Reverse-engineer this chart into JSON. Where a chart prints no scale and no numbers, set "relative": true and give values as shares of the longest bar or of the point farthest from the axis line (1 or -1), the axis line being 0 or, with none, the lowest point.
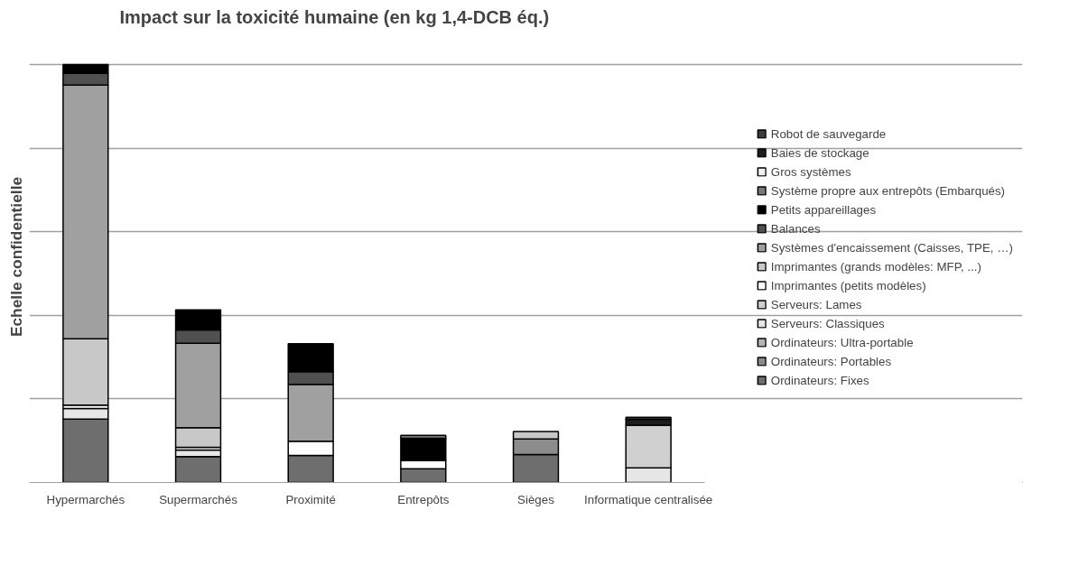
{
  "chart_data": {
    "type": "bar",
    "title": "Impact sur la toxicité humaine (en kg 1,4-DCB éq.)",
    "ylabel": "Echelle confidentielle",
    "categories": [
      "Hypermarchés",
      "Supermarchés",
      "Proximité",
      "Entrepôts",
      "Sièges",
      "Informatique centralisée"
    ],
    "stacked": true,
    "relative": true,
    "grid": "y",
    "legend": "right",
    "series": [
      {
        "name": "Ordinateurs: Fixes",
        "color": "#6e6e6e",
        "values": [
          0.152,
          0.062,
          0.065,
          0.033,
          0.067,
          null
        ]
      },
      {
        "name": "Ordinateurs: Portables",
        "color": "#8c8c8c",
        "values": [
          null,
          null,
          null,
          null,
          0.037,
          null
        ]
      },
      {
        "name": "Ordinateurs: Ultra-portable",
        "color": "#b4b4b4",
        "values": [
          null,
          null,
          null,
          null,
          null,
          null
        ]
      },
      {
        "name": "Serveurs: Classiques",
        "color": "#e6e6e6",
        "values": [
          0.025,
          0.016,
          null,
          null,
          null,
          0.035
        ]
      },
      {
        "name": "Serveurs: Lames",
        "color": "#d0d0d0",
        "values": [
          null,
          null,
          null,
          null,
          null,
          0.102
        ]
      },
      {
        "name": "Imprimantes (petits modèles)",
        "color": "#ffffff",
        "values": [
          0.008,
          0.006,
          0.034,
          0.02,
          null,
          null
        ]
      },
      {
        "name": "Imprimantes (grands modèles: MFP, ...)",
        "color": "#c8c8c8",
        "values": [
          0.159,
          0.047,
          null,
          null,
          0.018,
          null
        ]
      },
      {
        "name": "Systèmes d'encaissement (Caisses, TPE, …)",
        "color": "#a0a0a0",
        "values": [
          0.607,
          0.202,
          0.136,
          null,
          null,
          null
        ]
      },
      {
        "name": "Balances",
        "color": "#505050",
        "values": [
          0.028,
          0.032,
          0.03,
          null,
          null,
          null
        ]
      },
      {
        "name": "Petits appareillages",
        "color": "#000000",
        "values": [
          0.021,
          0.048,
          0.067,
          0.053,
          null,
          null
        ]
      },
      {
        "name": "Système propre aux entrepôts (Embarqués)",
        "color": "#787878",
        "values": [
          null,
          null,
          null,
          0.007,
          null,
          null
        ]
      },
      {
        "name": "Gros systèmes",
        "color": "#f0f0f0",
        "values": [
          null,
          null,
          null,
          null,
          null,
          null
        ]
      },
      {
        "name": "Baies de stockage",
        "color": "#1e1e1e",
        "values": [
          null,
          null,
          null,
          null,
          null,
          0.014
        ]
      },
      {
        "name": "Robot de sauvegarde",
        "color": "#3c3c3c",
        "values": [
          null,
          null,
          null,
          null,
          null,
          0.005
        ]
      }
    ]
  }
}
